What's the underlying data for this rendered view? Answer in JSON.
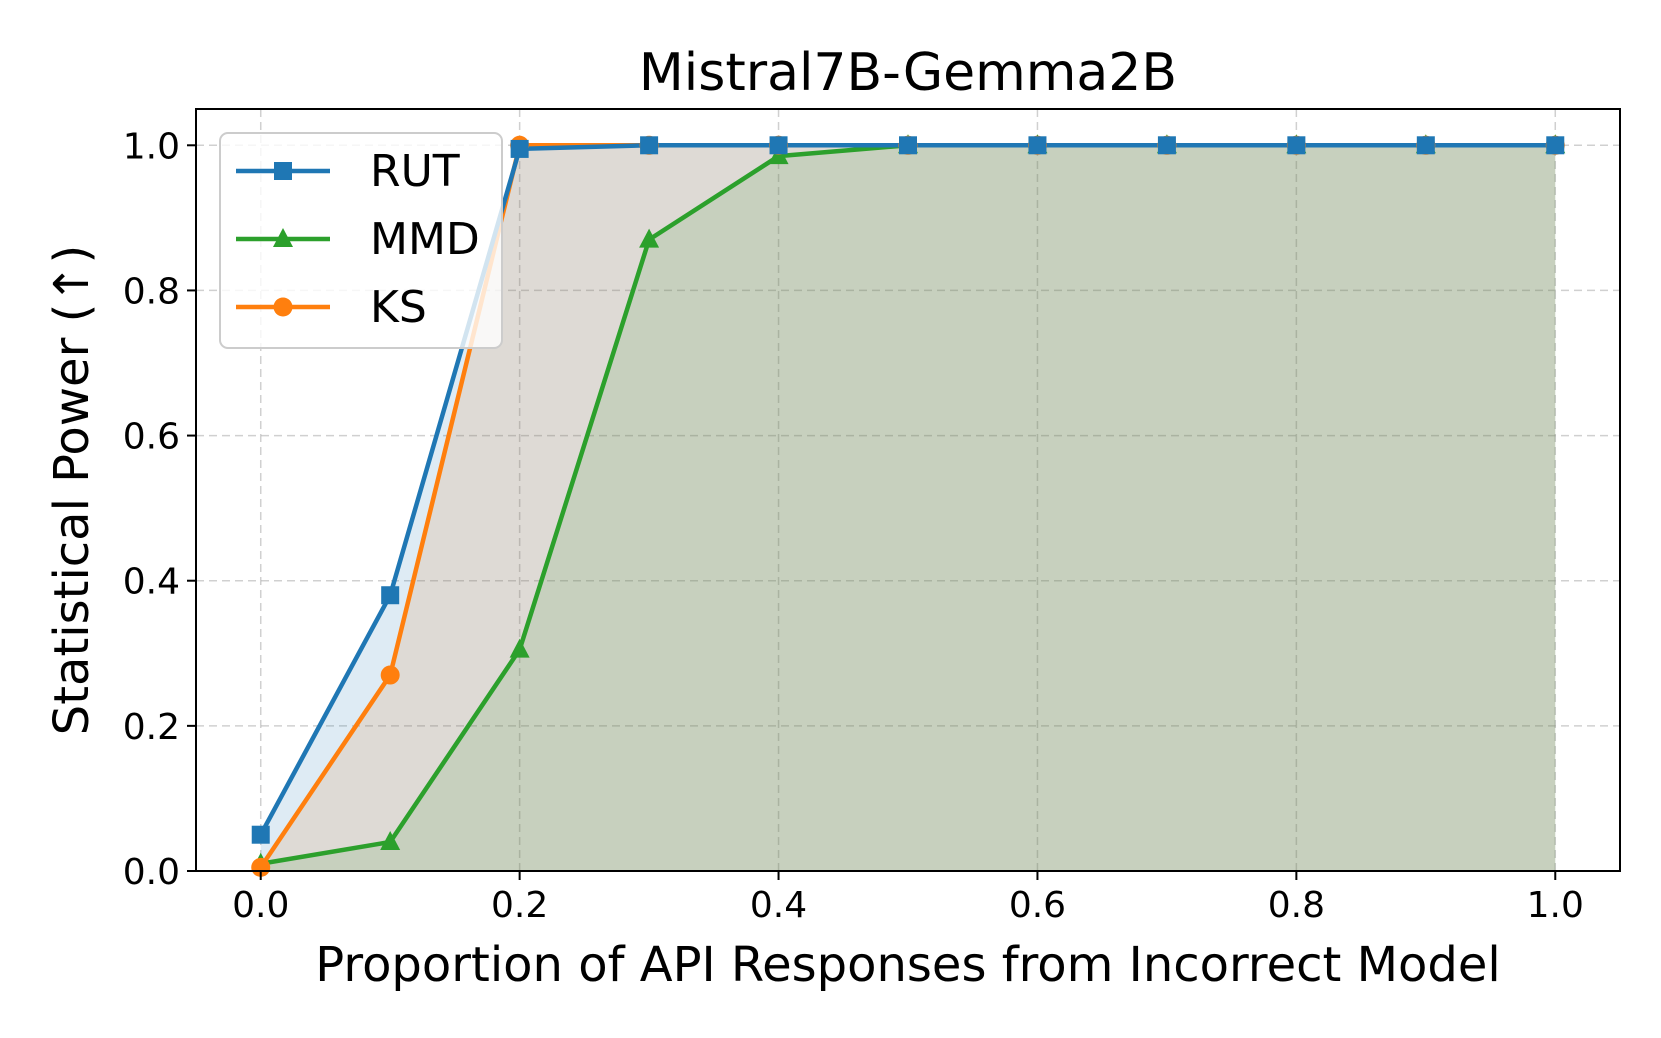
{
  "chart_data": {
    "type": "line",
    "title": "Mistral7B-Gemma2B",
    "xlabel": "Proportion of API Responses from Incorrect Model",
    "ylabel": "Statistical Power (↑)",
    "x": [
      0.0,
      0.1,
      0.2,
      0.3,
      0.4,
      0.5,
      0.6,
      0.7,
      0.8,
      0.9,
      1.0
    ],
    "xlim": [
      -0.05,
      1.05
    ],
    "ylim": [
      0.0,
      1.05
    ],
    "xticks": [
      "0.0",
      "0.2",
      "0.4",
      "0.6",
      "0.8",
      "1.0"
    ],
    "yticks": [
      "0.0",
      "0.2",
      "0.4",
      "0.6",
      "0.8",
      "1.0"
    ],
    "grid": true,
    "legend_position": "top-left",
    "series": [
      {
        "name": "RUT",
        "color": "#1f77b4",
        "marker": "square",
        "fill": true,
        "values": [
          0.05,
          0.38,
          0.995,
          1.0,
          1.0,
          1.0,
          1.0,
          1.0,
          1.0,
          1.0,
          1.0
        ]
      },
      {
        "name": "MMD",
        "color": "#2ca02c",
        "marker": "triangle",
        "fill": true,
        "values": [
          0.01,
          0.04,
          0.305,
          0.87,
          0.985,
          1.0,
          1.0,
          1.0,
          1.0,
          1.0,
          1.0
        ]
      },
      {
        "name": "KS",
        "color": "#ff7f0e",
        "marker": "circle",
        "fill": true,
        "values": [
          0.005,
          0.27,
          1.0,
          1.0,
          1.0,
          1.0,
          1.0,
          1.0,
          1.0,
          1.0,
          1.0
        ]
      }
    ]
  }
}
